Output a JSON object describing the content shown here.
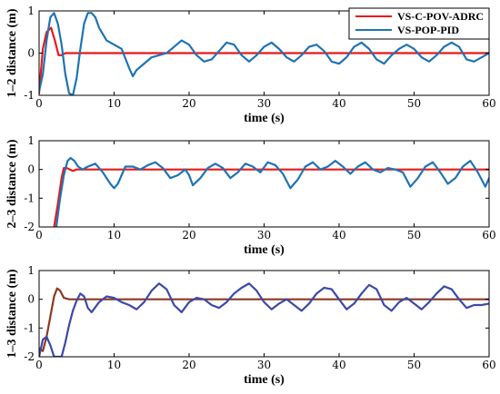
{
  "chart_data": [
    {
      "type": "line",
      "xlabel": "time (s)",
      "ylabel": "1–2 distance (m)",
      "xlim": [
        0,
        60
      ],
      "ylim": [
        -1,
        1
      ],
      "xticks": [
        "0",
        "10",
        "20",
        "30",
        "40",
        "50",
        "60"
      ],
      "yticks": [
        "-1",
        "0",
        "1"
      ],
      "grid": false,
      "legend": "top-right",
      "series": [
        {
          "name": "VS-C-POV-ADRC",
          "color": "#e8191c",
          "x": [
            0,
            0.5,
            1.0,
            1.6,
            2.1,
            2.6,
            3.0,
            3.5,
            5,
            10,
            15,
            20,
            25,
            30,
            35,
            40,
            45,
            50,
            55,
            60
          ],
          "y": [
            -0.95,
            0.1,
            0.5,
            0.6,
            0.3,
            -0.05,
            -0.05,
            0.0,
            0.0,
            0.0,
            0.0,
            0.0,
            0.0,
            0.0,
            0.0,
            0.0,
            0.0,
            0.0,
            0.0,
            0.0
          ]
        },
        {
          "name": "VS-POP-PID",
          "color": "#1f73b3",
          "x": [
            0,
            0.5,
            1.0,
            1.5,
            2.0,
            2.5,
            3.0,
            3.5,
            4.0,
            4.5,
            5.0,
            5.5,
            6.0,
            6.5,
            7.0,
            7.5,
            8.0,
            9.0,
            10.0,
            11.0,
            12.0,
            12.5,
            13.0,
            14.0,
            15.0,
            16.0,
            17.0,
            18.0,
            19.0,
            20.0,
            21.0,
            22.0,
            23.0,
            24.0,
            25.0,
            26.0,
            27.0,
            28.0,
            29.0,
            30.0,
            31.0,
            32.0,
            33.0,
            34.0,
            35.0,
            36.0,
            37.0,
            38.0,
            39.0,
            40.0,
            41.0,
            42.0,
            43.0,
            44.0,
            45.0,
            46.0,
            47.0,
            48.0,
            49.0,
            50.0,
            51.0,
            52.0,
            53.0,
            54.0,
            55.0,
            56.0,
            57.0,
            58.0,
            59.0,
            60.0
          ],
          "y": [
            -0.9,
            -0.5,
            0.3,
            0.85,
            0.95,
            0.7,
            0.2,
            -0.5,
            -0.95,
            -1.0,
            -0.6,
            0.1,
            0.7,
            0.95,
            0.95,
            0.85,
            0.6,
            0.3,
            0.2,
            0.1,
            -0.35,
            -0.55,
            -0.4,
            -0.25,
            -0.1,
            -0.05,
            0.0,
            0.15,
            0.3,
            0.2,
            -0.05,
            -0.2,
            -0.15,
            0.05,
            0.25,
            0.2,
            -0.05,
            -0.2,
            -0.05,
            0.15,
            0.25,
            0.1,
            -0.1,
            -0.2,
            -0.05,
            0.15,
            0.2,
            0.05,
            -0.2,
            -0.25,
            -0.1,
            0.15,
            0.25,
            0.1,
            -0.15,
            -0.25,
            -0.05,
            0.1,
            0.2,
            0.1,
            -0.1,
            -0.2,
            -0.05,
            0.15,
            0.25,
            0.15,
            -0.15,
            -0.2,
            -0.1,
            0.0
          ]
        }
      ]
    },
    {
      "type": "line",
      "xlabel": "time (s)",
      "ylabel": "2–3 distance (m)",
      "xlim": [
        0,
        60
      ],
      "ylim": [
        -2,
        1
      ],
      "xticks": [
        "0",
        "10",
        "20",
        "30",
        "40",
        "50",
        "60"
      ],
      "yticks": [
        "-2",
        "-1",
        "0",
        "1"
      ],
      "grid": false,
      "series": [
        {
          "name": "VS-C-POV-ADRC",
          "color": "#e8191c",
          "x": [
            2.0,
            2.5,
            3.0,
            3.3,
            3.7,
            4.5,
            5,
            10,
            15,
            20,
            25,
            30,
            35,
            40,
            45,
            50,
            55,
            60
          ],
          "y": [
            -2.0,
            -1.2,
            -0.3,
            0.05,
            0.05,
            -0.05,
            0.0,
            0.0,
            0.0,
            0.0,
            0.0,
            0.0,
            0.0,
            0.0,
            0.0,
            0.0,
            0.0,
            0.0
          ]
        },
        {
          "name": "VS-POP-PID",
          "color": "#1f73b3",
          "x": [
            2.3,
            2.8,
            3.3,
            3.8,
            4.2,
            4.7,
            5.2,
            5.8,
            6.5,
            7.5,
            8.5,
            9.5,
            10.0,
            10.5,
            11.5,
            12.5,
            13.5,
            14.5,
            15.5,
            16.5,
            17.5,
            18.5,
            19.5,
            20.0,
            20.5,
            21.5,
            22.5,
            23.5,
            24.5,
            25.5,
            26.5,
            27.5,
            28.5,
            29.5,
            30.5,
            31.5,
            32.5,
            33.5,
            34.5,
            35.5,
            36.5,
            37.5,
            38.5,
            39.5,
            40.5,
            41.5,
            42.5,
            43.5,
            44.5,
            45.5,
            46.5,
            47.5,
            48.5,
            49.5,
            50.5,
            51.5,
            52.5,
            53.5,
            54.5,
            55.5,
            56.5,
            57.5,
            58.5,
            59.5,
            60.0
          ],
          "y": [
            -2.0,
            -1.0,
            -0.2,
            0.3,
            0.4,
            0.3,
            0.1,
            0.0,
            0.1,
            0.2,
            -0.1,
            -0.5,
            -0.65,
            -0.5,
            0.1,
            0.1,
            0.0,
            0.15,
            0.25,
            0.05,
            -0.3,
            -0.2,
            0.0,
            -0.2,
            -0.55,
            -0.3,
            0.05,
            0.2,
            0.05,
            -0.3,
            -0.1,
            0.2,
            0.1,
            -0.1,
            0.25,
            0.15,
            -0.15,
            -0.65,
            -0.35,
            0.1,
            0.25,
            0.0,
            0.1,
            0.3,
            0.1,
            -0.15,
            0.1,
            0.25,
            0.0,
            -0.1,
            0.05,
            0.0,
            -0.1,
            -0.6,
            -0.3,
            0.1,
            0.25,
            -0.1,
            -0.5,
            -0.3,
            0.1,
            0.3,
            -0.1,
            -0.6,
            -0.3
          ]
        }
      ]
    },
    {
      "type": "line",
      "xlabel": "time (s)",
      "ylabel": "1–3 distance (m)",
      "xlim": [
        0,
        60
      ],
      "ylim": [
        -2,
        1
      ],
      "xticks": [
        "0",
        "10",
        "20",
        "30",
        "40",
        "50",
        "60"
      ],
      "yticks": [
        "-2",
        "-1",
        "0",
        "1"
      ],
      "grid": false,
      "series": [
        {
          "name": "VS-C-POV-ADRC",
          "color": "#8a3a22",
          "x": [
            0,
            0.5,
            1.0,
            1.5,
            2.0,
            2.4,
            2.8,
            3.3,
            4.0,
            5,
            10,
            15,
            20,
            25,
            30,
            35,
            40,
            45,
            50,
            55,
            60
          ],
          "y": [
            -1.7,
            -1.8,
            -1.3,
            -0.6,
            0.1,
            0.38,
            0.3,
            0.05,
            0.0,
            0.0,
            0.0,
            0.0,
            0.0,
            0.0,
            0.0,
            0.0,
            0.0,
            0.0,
            0.0,
            0.0,
            0.0
          ]
        },
        {
          "name": "VS-POP-PID",
          "color": "#3a4aa8",
          "x": [
            0,
            0.5,
            1.0,
            1.5,
            2.0,
            2.5,
            3.0,
            3.5,
            4.0,
            4.5,
            5.0,
            5.5,
            6.0,
            6.5,
            7.0,
            8.0,
            9.0,
            10.0,
            11.0,
            12.0,
            13.0,
            14.0,
            15.0,
            16.0,
            17.0,
            18.0,
            19.0,
            20.0,
            21.0,
            22.0,
            23.0,
            24.0,
            25.0,
            26.0,
            27.0,
            28.0,
            29.0,
            30.0,
            31.0,
            32.0,
            33.0,
            34.0,
            35.0,
            36.0,
            37.0,
            38.0,
            39.0,
            40.0,
            41.0,
            42.0,
            43.0,
            44.0,
            45.0,
            46.0,
            47.0,
            48.0,
            49.0,
            50.0,
            51.0,
            52.0,
            53.0,
            54.0,
            55.0,
            56.0,
            57.0,
            58.0,
            59.0,
            60.0
          ],
          "y": [
            -2.0,
            -1.4,
            -1.3,
            -1.6,
            -2.0,
            -2.0,
            -2.0,
            -1.5,
            -0.9,
            -0.4,
            -0.05,
            0.2,
            0.1,
            -0.3,
            -0.45,
            -0.1,
            0.1,
            0.05,
            -0.1,
            -0.2,
            -0.35,
            -0.1,
            0.3,
            0.55,
            0.35,
            -0.2,
            -0.45,
            -0.1,
            0.05,
            0.0,
            -0.2,
            -0.3,
            -0.1,
            0.2,
            0.4,
            0.55,
            0.3,
            -0.1,
            -0.35,
            -0.15,
            0.0,
            -0.2,
            -0.4,
            -0.15,
            0.2,
            0.4,
            0.35,
            0.0,
            -0.35,
            -0.15,
            0.2,
            0.5,
            0.35,
            -0.2,
            -0.4,
            -0.1,
            0.05,
            -0.15,
            -0.35,
            -0.1,
            0.2,
            0.45,
            0.35,
            0.0,
            -0.3,
            -0.2,
            -0.2,
            -0.15
          ]
        }
      ]
    }
  ]
}
